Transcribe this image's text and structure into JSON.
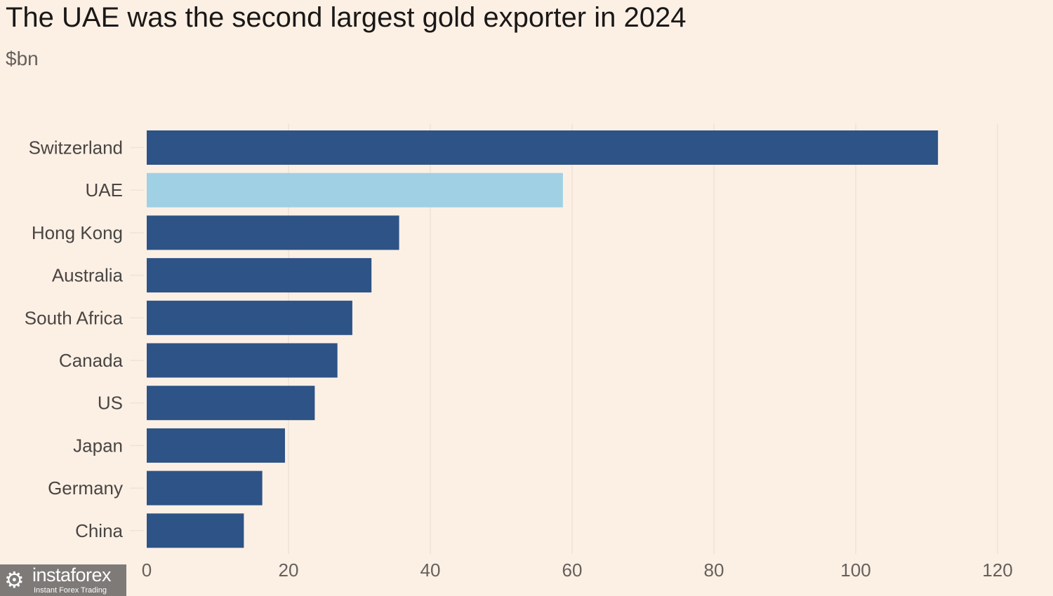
{
  "chart_data": {
    "type": "bar",
    "orientation": "horizontal",
    "title": "The UAE was the second largest gold exporter in 2024",
    "subtitle": "$bn",
    "categories": [
      "Switzerland",
      "UAE",
      "Hong Kong",
      "Australia",
      "South Africa",
      "Canada",
      "US",
      "Japan",
      "Germany",
      "China"
    ],
    "values": [
      111.6,
      58.7,
      35.6,
      31.7,
      29.0,
      26.9,
      23.7,
      19.5,
      16.3,
      13.7
    ],
    "highlight": "UAE",
    "xlabel": "",
    "ylabel": "",
    "xlim": [
      0,
      120
    ],
    "xticks": [
      "0",
      "20",
      "40",
      "60",
      "80",
      "100",
      "120"
    ],
    "grid": true,
    "colors": {
      "bar": "#2e5386",
      "highlight": "#a0d0e4",
      "grid": "#efe2d8",
      "background": "#fcf0e5"
    }
  },
  "watermark": {
    "name": "instaforex",
    "tagline": "Instant Forex Trading"
  }
}
